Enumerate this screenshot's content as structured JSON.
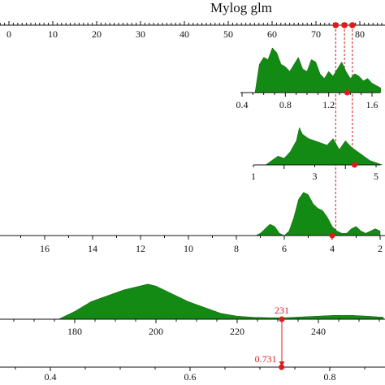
{
  "chart_data": {
    "type": "area",
    "title": "Mylog glm",
    "scales": [
      {
        "id": "top-scale",
        "ticks": [
          0,
          10,
          20,
          30,
          40,
          50,
          60,
          70,
          80
        ],
        "markers": [
          74.5,
          76.5,
          78.3
        ]
      },
      {
        "id": "density-a",
        "ticks": [
          "0.4",
          "0.8",
          "1.2",
          "1.6"
        ],
        "x": [
          0.4,
          0.52,
          0.56,
          0.6,
          0.64,
          0.68,
          0.72,
          0.76,
          0.8,
          0.84,
          0.88,
          0.92,
          0.96,
          1.0,
          1.04,
          1.08,
          1.12,
          1.16,
          1.2,
          1.24,
          1.28,
          1.32,
          1.36,
          1.4,
          1.44,
          1.48,
          1.52,
          1.56,
          1.6,
          1.64,
          1.68
        ],
        "y": [
          0,
          0,
          0.6,
          0.75,
          0.7,
          0.95,
          0.85,
          0.6,
          0.55,
          0.45,
          0.6,
          0.75,
          0.5,
          0.45,
          0.7,
          0.65,
          0.4,
          0.3,
          0.45,
          0.35,
          0.5,
          0.65,
          0.45,
          0.3,
          0.4,
          0.35,
          0.25,
          0.3,
          0.2,
          0.15,
          0.1
        ],
        "marker": 1.37
      },
      {
        "id": "density-b",
        "ticks": [
          "1",
          "3",
          "5"
        ],
        "x": [
          1,
          1.4,
          1.6,
          1.8,
          2.0,
          2.2,
          2.4,
          2.5,
          2.6,
          2.8,
          3.0,
          3.2,
          3.4,
          3.6,
          3.8,
          4.0,
          4.2,
          4.4,
          4.6,
          4.8,
          5.0,
          5.2
        ],
        "y": [
          0,
          0,
          0.1,
          0.2,
          0.15,
          0.3,
          0.55,
          0.85,
          0.7,
          0.6,
          0.55,
          0.5,
          0.45,
          0.6,
          0.35,
          0.55,
          0.4,
          0.3,
          0.2,
          0.1,
          0.05,
          0
        ],
        "marker": 4.3
      },
      {
        "id": "reversed-scale",
        "ticks": [
          16,
          14,
          12,
          10,
          8,
          6,
          4,
          2
        ],
        "x": [
          7.2,
          7.0,
          6.8,
          6.6,
          6.4,
          6.2,
          6.0,
          5.8,
          5.6,
          5.4,
          5.2,
          5.0,
          4.8,
          4.6,
          4.4,
          4.2,
          4.0,
          3.8,
          3.6,
          3.4,
          3.2,
          3.0,
          2.8,
          2.6,
          2.4,
          2.2,
          2.0
        ],
        "y": [
          0,
          0.05,
          0.15,
          0.25,
          0.2,
          0.05,
          0,
          0.1,
          0.4,
          0.8,
          0.95,
          0.9,
          0.7,
          0.6,
          0.55,
          0.4,
          0.2,
          0.1,
          0.05,
          0.05,
          0.15,
          0.2,
          0.1,
          0.05,
          0.1,
          0.15,
          0.1
        ],
        "marker": 4.0
      },
      {
        "id": "value-scale",
        "ticks": [
          "180",
          "200",
          "220",
          "240"
        ],
        "x": [
          176,
          180,
          184,
          188,
          192,
          196,
          198,
          200,
          204,
          208,
          212,
          216,
          220,
          224,
          228,
          232,
          236,
          240,
          244,
          248,
          252,
          256
        ],
        "y": [
          0,
          0.2,
          0.45,
          0.6,
          0.75,
          0.85,
          0.9,
          0.85,
          0.65,
          0.45,
          0.3,
          0.15,
          0.08,
          0.05,
          0.04,
          0.04,
          0.06,
          0.08,
          0.1,
          0.1,
          0.08,
          0.05
        ],
        "marker": 231,
        "marker_label": "231"
      },
      {
        "id": "bottom-scale",
        "ticks": [
          "0.4",
          "0.6",
          "0.8"
        ],
        "marker": 0.731,
        "marker_label": "0.731"
      }
    ],
    "colors": {
      "fill": "#138a13",
      "marker": "#e01b1b",
      "axis": "#111111"
    }
  }
}
